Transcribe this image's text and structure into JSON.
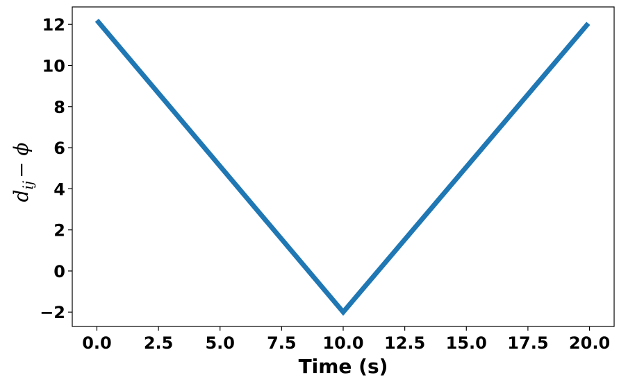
{
  "chart_data": {
    "type": "line",
    "title": "",
    "xlabel": "Time (s)",
    "ylabel": {
      "main": "d",
      "subscript": "ij",
      "rest": "− ϕ"
    },
    "xlim": [
      -1.0,
      21.0
    ],
    "ylim": [
      -2.7,
      12.85
    ],
    "xticks": [
      0.0,
      2.5,
      5.0,
      7.5,
      10.0,
      12.5,
      15.0,
      17.5,
      20.0
    ],
    "xtick_labels": [
      "0.0",
      "2.5",
      "5.0",
      "7.5",
      "10.0",
      "12.5",
      "15.0",
      "17.5",
      "20.0"
    ],
    "yticks": [
      -2,
      0,
      2,
      4,
      6,
      8,
      10,
      12
    ],
    "ytick_labels": [
      "−2",
      "0",
      "2",
      "4",
      "6",
      "8",
      "10",
      "12"
    ],
    "grid": false,
    "legend": "none",
    "series": [
      {
        "color": "#1f77b4",
        "x": [
          0.0,
          10.0,
          19.95
        ],
        "y": [
          12.2,
          -2.0,
          12.05
        ]
      }
    ]
  }
}
